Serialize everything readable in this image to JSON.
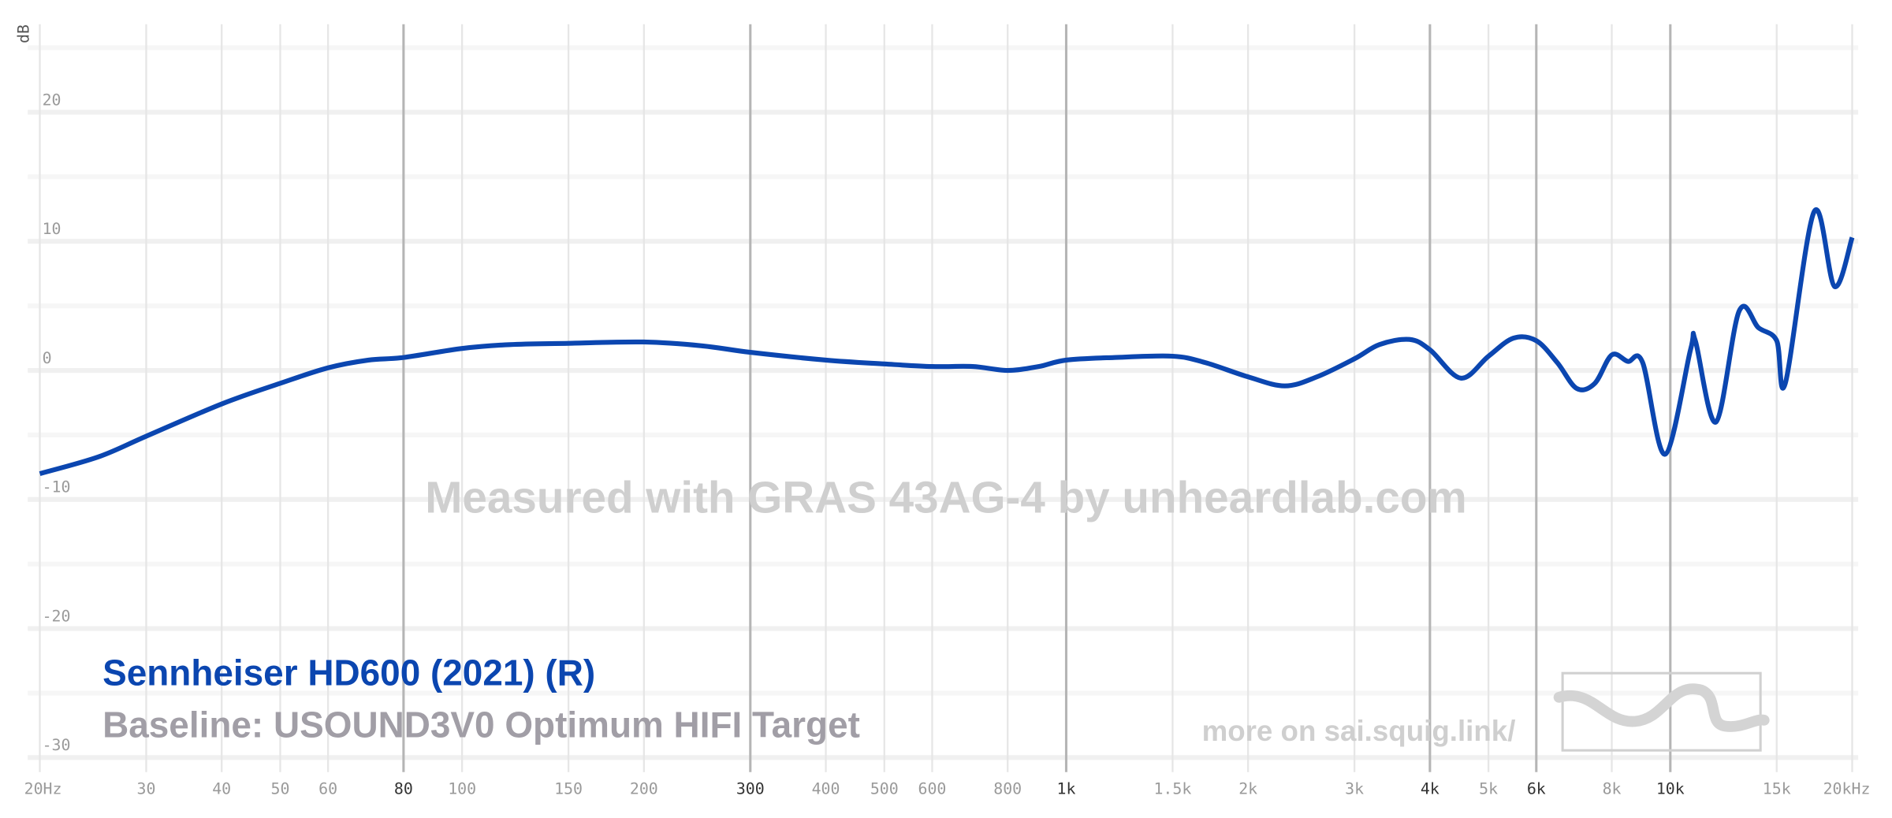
{
  "chart_data": {
    "type": "line",
    "y_label": "dB",
    "watermark": "Measured with GRAS 43AG-4 by unheardlab.com",
    "baseline": "Baseline: USOUND3V0 Optimum HIFI Target",
    "credit": "more on sai.squig.link/",
    "xscale": "log",
    "grid": true,
    "xlim": [
      20,
      20000
    ],
    "ylim": [
      -31,
      25
    ],
    "xticks": [
      {
        "value": 20,
        "label": "20Hz"
      },
      30,
      40,
      50,
      60,
      80,
      100,
      150,
      200,
      300,
      400,
      500,
      600,
      800,
      {
        "value": 1000,
        "label": "1k"
      },
      {
        "value": 1500,
        "label": "1.5k"
      },
      {
        "value": 2000,
        "label": "2k"
      },
      {
        "value": 3000,
        "label": "3k"
      },
      {
        "value": 4000,
        "label": "4k"
      },
      {
        "value": 5000,
        "label": "5k"
      },
      {
        "value": 6000,
        "label": "6k"
      },
      {
        "value": 8000,
        "label": "8k"
      },
      {
        "value": 10000,
        "label": "10k"
      },
      {
        "value": 15000,
        "label": "15k"
      },
      {
        "value": 20000,
        "label": "20kHz"
      }
    ],
    "xticks_emphasis": [
      80,
      300,
      1000,
      4000,
      6000,
      10000
    ],
    "yticks": [
      -30,
      -20,
      -10,
      0,
      10,
      20
    ],
    "yticks_minor": [
      -25,
      -15,
      -5,
      5,
      15,
      25
    ],
    "x": [
      20,
      25,
      30,
      40,
      50,
      60,
      70,
      80,
      100,
      120,
      150,
      200,
      250,
      300,
      400,
      500,
      600,
      700,
      800,
      900,
      1000,
      1200,
      1500,
      1700,
      2000,
      2300,
      2600,
      3000,
      3300,
      3700,
      4000,
      4500,
      5000,
      5500,
      6000,
      6500,
      7000,
      7500,
      8000,
      8500,
      9000,
      9800,
      10800,
      11000,
      11900,
      13000,
      14000,
      15000,
      15500,
      17300,
      18700,
      20000
    ],
    "series": [
      {
        "name": "Sennheiser HD600 (2021) (R)",
        "color": "#0b46b0",
        "values": [
          -8.0,
          -6.7,
          -5.1,
          -2.6,
          -1.0,
          0.2,
          0.8,
          1.0,
          1.7,
          2.0,
          2.1,
          2.2,
          1.9,
          1.4,
          0.8,
          0.5,
          0.3,
          0.3,
          0.0,
          0.3,
          0.8,
          1.0,
          1.1,
          0.6,
          -0.5,
          -1.2,
          -0.5,
          0.9,
          2.0,
          2.4,
          1.6,
          -0.6,
          1.1,
          2.5,
          2.3,
          0.6,
          -1.4,
          -1.0,
          1.2,
          0.7,
          0.6,
          -6.5,
          1.6,
          2.3,
          -4.0,
          4.6,
          3.3,
          2.3,
          -1.0,
          12.3,
          6.5,
          10.3
        ]
      }
    ]
  }
}
